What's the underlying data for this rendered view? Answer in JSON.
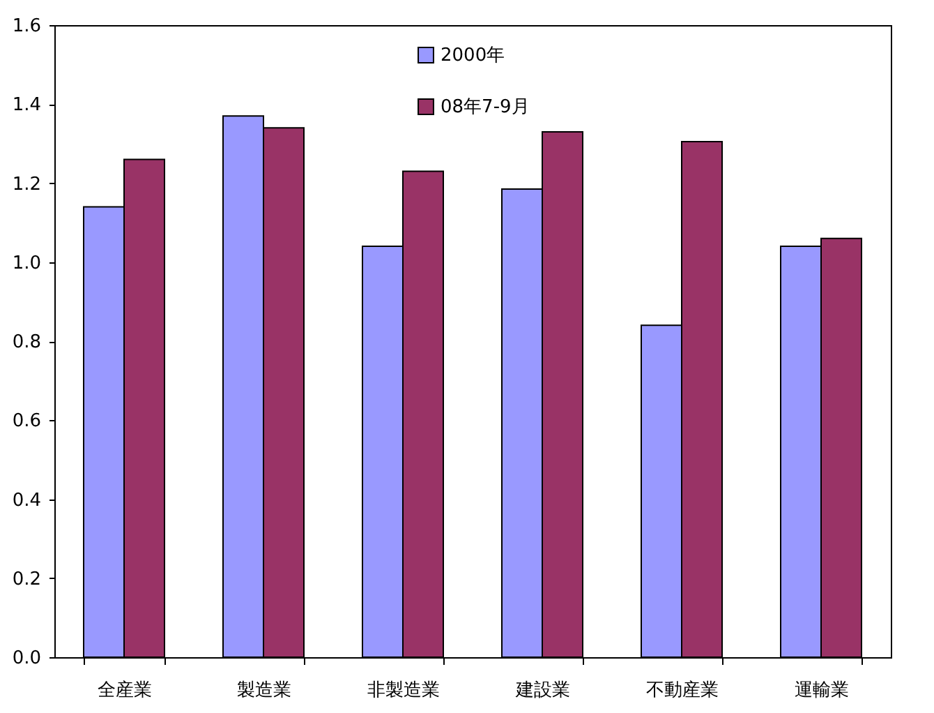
{
  "chart_data": {
    "type": "bar",
    "categories": [
      "全産業",
      "製造業",
      "非製造業",
      "建設業",
      "不動産業",
      "運輸業"
    ],
    "series": [
      {
        "name": "2000年",
        "color": "#9999ff",
        "values": [
          1.14,
          1.37,
          1.04,
          1.185,
          0.84,
          1.04
        ]
      },
      {
        "name": "08年7-9月",
        "color": "#993366",
        "values": [
          1.26,
          1.34,
          1.23,
          1.33,
          1.305,
          1.06
        ]
      }
    ],
    "ylim": [
      0,
      1.6
    ],
    "yticks": [
      {
        "value": 0,
        "label": "0.0"
      },
      0.2,
      0.4,
      0.6,
      0.8,
      {
        "value": 1,
        "label": "1.0"
      },
      1.2,
      1.4,
      1.6
    ],
    "grid": false,
    "legend": "top"
  }
}
